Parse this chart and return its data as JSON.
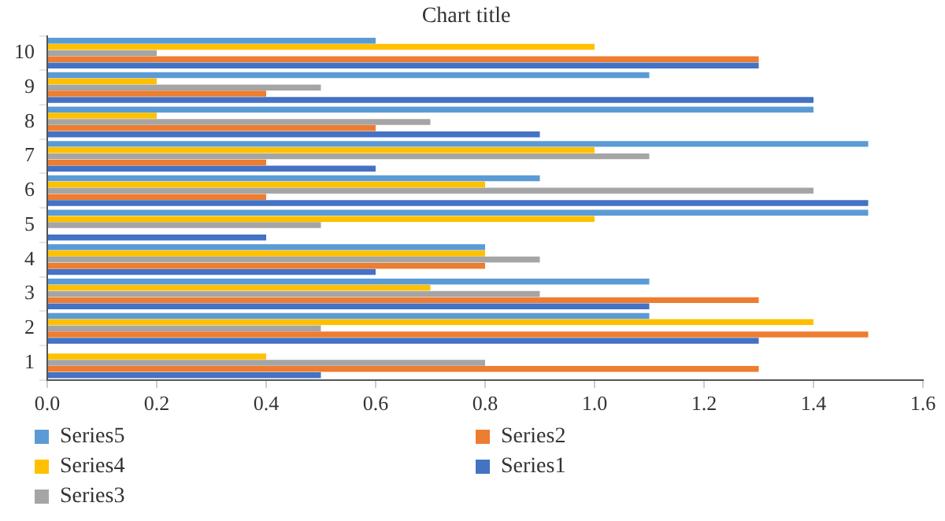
{
  "chart_data": {
    "type": "bar",
    "orientation": "horizontal",
    "title": "Chart title",
    "categories": [
      "10",
      "9",
      "8",
      "7",
      "6",
      "5",
      "4",
      "3",
      "2",
      "1"
    ],
    "series": [
      {
        "name": "Series5",
        "color": "#5b9bd5",
        "values": [
          0.6,
          1.1,
          1.4,
          1.5,
          0.9,
          1.5,
          0.8,
          1.1,
          1.1,
          0
        ]
      },
      {
        "name": "Series4",
        "color": "#ffc000",
        "values": [
          1.0,
          0.2,
          0.2,
          1.0,
          0.8,
          1.0,
          0.8,
          0.7,
          1.4,
          0.4
        ]
      },
      {
        "name": "Series3",
        "color": "#a5a5a5",
        "values": [
          0.2,
          0.5,
          0.7,
          1.1,
          1.4,
          0.5,
          0.9,
          0.9,
          0.5,
          0.8
        ]
      },
      {
        "name": "Series2",
        "color": "#ed7d31",
        "values": [
          1.3,
          0.4,
          0.6,
          0.4,
          0.4,
          0,
          0.8,
          1.3,
          1.5,
          1.3
        ]
      },
      {
        "name": "Series1",
        "color": "#4472c4",
        "values": [
          1.3,
          1.4,
          0.9,
          0.6,
          1.5,
          0.4,
          0.6,
          1.1,
          1.3,
          0.5
        ]
      }
    ],
    "xlim": [
      0,
      1.6
    ],
    "xticks": [
      {
        "value": 0,
        "label": "0.0"
      },
      {
        "value": 0.2,
        "label": "0.2"
      },
      {
        "value": 0.4,
        "label": "0.4"
      },
      {
        "value": 0.6,
        "label": "0.6"
      },
      {
        "value": 0.8,
        "label": "0.8"
      },
      {
        "value": 1,
        "label": "1.0"
      },
      {
        "value": 1.2,
        "label": "1.2"
      },
      {
        "value": 1.4,
        "label": "1.4"
      },
      {
        "value": 1.6,
        "label": "1.6"
      }
    ],
    "grid": false,
    "legend": "bottom"
  }
}
